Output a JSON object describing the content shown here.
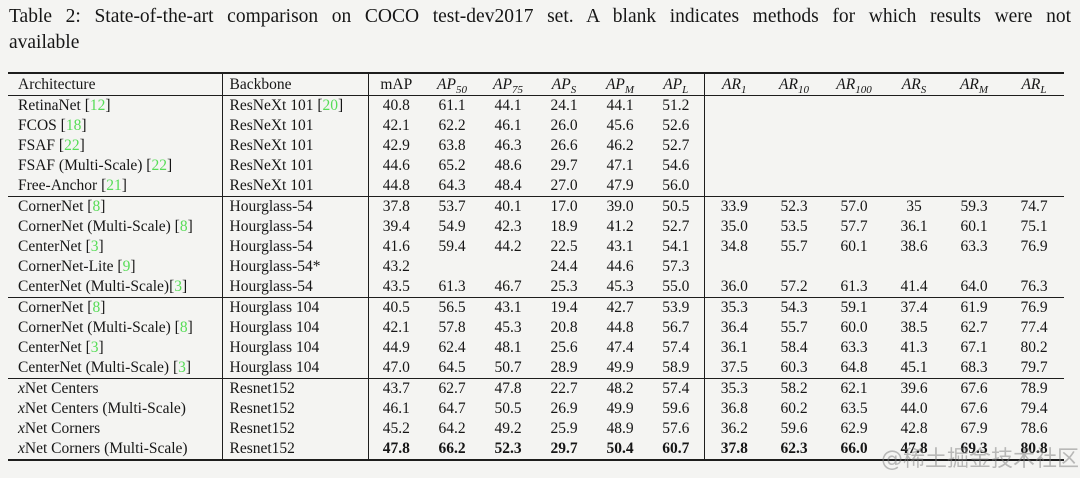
{
  "caption": {
    "line1": "Table 2: State-of-the-art comparison on COCO test-dev2017 set. A blank indicates methods for which results were not",
    "line2": "available"
  },
  "watermark": "@稀土掘金技术社区",
  "colors": {
    "citation_green": "#57dd57",
    "rule_black": "#1d1d1d",
    "background": "#f4f4f2"
  },
  "table": {
    "columns": [
      {
        "key": "architecture",
        "label": "Architecture"
      },
      {
        "key": "backbone",
        "label": "Backbone"
      },
      {
        "key": "map",
        "label": "mAP"
      },
      {
        "key": "ap50",
        "math": true,
        "base": "AP",
        "sub": "50"
      },
      {
        "key": "ap75",
        "math": true,
        "base": "AP",
        "sub": "75"
      },
      {
        "key": "aps",
        "math": true,
        "base": "AP",
        "sub": "S"
      },
      {
        "key": "apm",
        "math": true,
        "base": "AP",
        "sub": "M"
      },
      {
        "key": "apl",
        "math": true,
        "base": "AP",
        "sub": "L"
      },
      {
        "key": "ar1",
        "math": true,
        "base": "AR",
        "sub": "1"
      },
      {
        "key": "ar10",
        "math": true,
        "base": "AR",
        "sub": "10"
      },
      {
        "key": "ar100",
        "math": true,
        "base": "AR",
        "sub": "100"
      },
      {
        "key": "ars",
        "math": true,
        "base": "AR",
        "sub": "S"
      },
      {
        "key": "arm",
        "math": true,
        "base": "AR",
        "sub": "M"
      },
      {
        "key": "arl",
        "math": true,
        "base": "AR",
        "sub": "L"
      }
    ],
    "groups": [
      {
        "rows": [
          {
            "arch": [
              {
                "t": "RetinaNet ["
              },
              {
                "t": "12",
                "s": "ref"
              },
              {
                "t": "]"
              }
            ],
            "backbone": [
              {
                "t": "ResNeXt 101 ["
              },
              {
                "t": "20",
                "s": "ref"
              },
              {
                "t": "]"
              }
            ],
            "values": [
              "40.8",
              "61.1",
              "44.1",
              "24.1",
              "44.1",
              "51.2",
              "",
              "",
              "",
              "",
              "",
              ""
            ],
            "bold": false
          },
          {
            "arch": [
              {
                "t": "FCOS ["
              },
              {
                "t": "18",
                "s": "ref"
              },
              {
                "t": "]"
              }
            ],
            "backbone": [
              {
                "t": "ResNeXt 101"
              }
            ],
            "values": [
              "42.1",
              "62.2",
              "46.1",
              "26.0",
              "45.6",
              "52.6",
              "",
              "",
              "",
              "",
              "",
              ""
            ],
            "bold": false
          },
          {
            "arch": [
              {
                "t": "FSAF ["
              },
              {
                "t": "22",
                "s": "ref"
              },
              {
                "t": "]"
              }
            ],
            "backbone": [
              {
                "t": "ResNeXt 101"
              }
            ],
            "values": [
              "42.9",
              "63.8",
              "46.3",
              "26.6",
              "46.2",
              "52.7",
              "",
              "",
              "",
              "",
              "",
              ""
            ],
            "bold": false
          },
          {
            "arch": [
              {
                "t": "FSAF (Multi-Scale) ["
              },
              {
                "t": "22",
                "s": "ref"
              },
              {
                "t": "]"
              }
            ],
            "backbone": [
              {
                "t": "ResNeXt 101"
              }
            ],
            "values": [
              "44.6",
              "65.2",
              "48.6",
              "29.7",
              "47.1",
              "54.6",
              "",
              "",
              "",
              "",
              "",
              ""
            ],
            "bold": false
          },
          {
            "arch": [
              {
                "t": "Free-Anchor ["
              },
              {
                "t": "21",
                "s": "ref"
              },
              {
                "t": "]"
              }
            ],
            "backbone": [
              {
                "t": "ResNeXt 101"
              }
            ],
            "values": [
              "44.8",
              "64.3",
              "48.4",
              "27.0",
              "47.9",
              "56.0",
              "",
              "",
              "",
              "",
              "",
              ""
            ],
            "bold": false
          }
        ]
      },
      {
        "rows": [
          {
            "arch": [
              {
                "t": "CornerNet ["
              },
              {
                "t": "8",
                "s": "ref"
              },
              {
                "t": "]"
              }
            ],
            "backbone": [
              {
                "t": "Hourglass-54"
              }
            ],
            "values": [
              "37.8",
              "53.7",
              "40.1",
              "17.0",
              "39.0",
              "50.5",
              "33.9",
              "52.3",
              "57.0",
              "35",
              "59.3",
              "74.7"
            ],
            "bold": false
          },
          {
            "arch": [
              {
                "t": "CornerNet (Multi-Scale) ["
              },
              {
                "t": "8",
                "s": "ref"
              },
              {
                "t": "]"
              }
            ],
            "backbone": [
              {
                "t": "Hourglass-54"
              }
            ],
            "values": [
              "39.4",
              "54.9",
              "42.3",
              "18.9",
              "41.2",
              "52.7",
              "35.0",
              "53.5",
              "57.7",
              "36.1",
              "60.1",
              "75.1"
            ],
            "bold": false
          },
          {
            "arch": [
              {
                "t": "CenterNet ["
              },
              {
                "t": "3",
                "s": "ref"
              },
              {
                "t": "]"
              }
            ],
            "backbone": [
              {
                "t": "Hourglass-54"
              }
            ],
            "values": [
              "41.6",
              "59.4",
              "44.2",
              "22.5",
              "43.1",
              "54.1",
              "34.8",
              "55.7",
              "60.1",
              "38.6",
              "63.3",
              "76.9"
            ],
            "bold": false
          },
          {
            "arch": [
              {
                "t": "CornerNet-Lite ["
              },
              {
                "t": "9",
                "s": "ref"
              },
              {
                "t": "]"
              }
            ],
            "backbone": [
              {
                "t": "Hourglass-54*"
              }
            ],
            "values": [
              "43.2",
              "",
              "",
              "24.4",
              "44.6",
              "57.3",
              "",
              "",
              "",
              "",
              "",
              ""
            ],
            "bold": false
          },
          {
            "arch": [
              {
                "t": "CenterNet (Multi-Scale)["
              },
              {
                "t": "3",
                "s": "ref"
              },
              {
                "t": "]"
              }
            ],
            "backbone": [
              {
                "t": "Hourglass-54"
              }
            ],
            "values": [
              "43.5",
              "61.3",
              "46.7",
              "25.3",
              "45.3",
              "55.0",
              "36.0",
              "57.2",
              "61.3",
              "41.4",
              "64.0",
              "76.3"
            ],
            "bold": false
          }
        ]
      },
      {
        "rows": [
          {
            "arch": [
              {
                "t": "CornerNet ["
              },
              {
                "t": "8",
                "s": "ref"
              },
              {
                "t": "]"
              }
            ],
            "backbone": [
              {
                "t": "Hourglass 104"
              }
            ],
            "values": [
              "40.5",
              "56.5",
              "43.1",
              "19.4",
              "42.7",
              "53.9",
              "35.3",
              "54.3",
              "59.1",
              "37.4",
              "61.9",
              "76.9"
            ],
            "bold": false
          },
          {
            "arch": [
              {
                "t": "CornerNet (Multi-Scale) ["
              },
              {
                "t": "8",
                "s": "ref"
              },
              {
                "t": "]"
              }
            ],
            "backbone": [
              {
                "t": "Hourglass 104"
              }
            ],
            "values": [
              "42.1",
              "57.8",
              "45.3",
              "20.8",
              "44.8",
              "56.7",
              "36.4",
              "55.7",
              "60.0",
              "38.5",
              "62.7",
              "77.4"
            ],
            "bold": false
          },
          {
            "arch": [
              {
                "t": "CenterNet ["
              },
              {
                "t": "3",
                "s": "ref"
              },
              {
                "t": "]"
              }
            ],
            "backbone": [
              {
                "t": "Hourglass 104"
              }
            ],
            "values": [
              "44.9",
              "62.4",
              "48.1",
              "25.6",
              "47.4",
              "57.4",
              "36.1",
              "58.4",
              "63.3",
              "41.3",
              "67.1",
              "80.2"
            ],
            "bold": false
          },
          {
            "arch": [
              {
                "t": "CenterNet (Multi-Scale) ["
              },
              {
                "t": "3",
                "s": "ref"
              },
              {
                "t": "]"
              }
            ],
            "backbone": [
              {
                "t": "Hourglass 104"
              }
            ],
            "values": [
              "47.0",
              "64.5",
              "50.7",
              "28.9",
              "49.9",
              "58.9",
              "37.5",
              "60.3",
              "64.8",
              "45.1",
              "68.3",
              "79.7"
            ],
            "bold": false
          }
        ]
      },
      {
        "rows": [
          {
            "arch": [
              {
                "t": "x",
                "s": "var"
              },
              {
                "t": "Net Centers"
              }
            ],
            "backbone": [
              {
                "t": "Resnet152"
              }
            ],
            "values": [
              "43.7",
              "62.7",
              "47.8",
              "22.7",
              "48.2",
              "57.4",
              "35.3",
              "58.2",
              "62.1",
              "39.6",
              "67.6",
              "78.9"
            ],
            "bold": false
          },
          {
            "arch": [
              {
                "t": "x",
                "s": "var"
              },
              {
                "t": "Net Centers (Multi-Scale)"
              }
            ],
            "backbone": [
              {
                "t": "Resnet152"
              }
            ],
            "values": [
              "46.1",
              "64.7",
              "50.5",
              "26.9",
              "49.9",
              "59.6",
              "36.8",
              "60.2",
              "63.5",
              "44.0",
              "67.6",
              "79.4"
            ],
            "bold": false
          },
          {
            "arch": [
              {
                "t": "x",
                "s": "var"
              },
              {
                "t": "Net Corners"
              }
            ],
            "backbone": [
              {
                "t": "Resnet152"
              }
            ],
            "values": [
              "45.2",
              "64.2",
              "49.2",
              "25.9",
              "48.9",
              "57.6",
              "36.2",
              "59.6",
              "62.9",
              "42.8",
              "67.9",
              "78.6"
            ],
            "bold": false
          },
          {
            "arch": [
              {
                "t": "x",
                "s": "var"
              },
              {
                "t": "Net Corners (Multi-Scale)"
              }
            ],
            "backbone": [
              {
                "t": "Resnet152"
              }
            ],
            "values": [
              "47.8",
              "66.2",
              "52.3",
              "29.7",
              "50.4",
              "60.7",
              "37.8",
              "62.3",
              "66.0",
              "47.8",
              "69.3",
              "80.8"
            ],
            "bold": true
          }
        ]
      }
    ]
  }
}
